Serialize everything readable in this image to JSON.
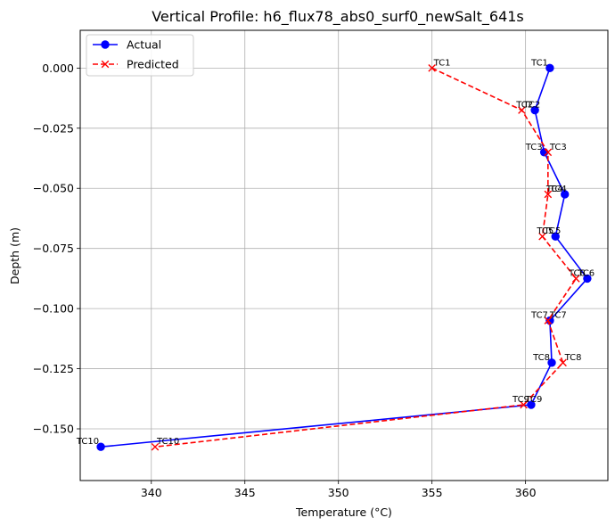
{
  "chart_data": {
    "type": "line",
    "title": "Vertical Profile: h6_flux78_abs0_surf0_newSalt_641s",
    "xlabel": "Temperature (°C)",
    "ylabel": "Depth (m)",
    "xlim": [
      336.2,
      364.4
    ],
    "ylim": [
      -0.1715,
      0.0157
    ],
    "xticks": [
      340,
      345,
      350,
      355,
      360
    ],
    "xtick_labels": [
      "340",
      "345",
      "350",
      "355",
      "360"
    ],
    "yticks": [
      0.0,
      -0.025,
      -0.05,
      -0.075,
      -0.1,
      -0.125,
      -0.15
    ],
    "ytick_labels": [
      "0.000",
      "−0.025",
      "−0.050",
      "−0.075",
      "−0.100",
      "−0.125",
      "−0.150"
    ],
    "grid": true,
    "legend_position": "top-left",
    "series": [
      {
        "name": "Actual",
        "color": "#0000ff",
        "linestyle": "solid",
        "marker": "circle",
        "label_side": "left",
        "points": [
          {
            "x": 361.3,
            "y": 0.0,
            "label": "TC1"
          },
          {
            "x": 360.5,
            "y": -0.0175,
            "label": "TC2"
          },
          {
            "x": 361.0,
            "y": -0.035,
            "label": "TC3"
          },
          {
            "x": 362.1,
            "y": -0.0525,
            "label": "TC4"
          },
          {
            "x": 361.6,
            "y": -0.07,
            "label": "TC5"
          },
          {
            "x": 363.3,
            "y": -0.0875,
            "label": "TC6"
          },
          {
            "x": 361.3,
            "y": -0.105,
            "label": "TC7"
          },
          {
            "x": 361.4,
            "y": -0.1225,
            "label": "TC8"
          },
          {
            "x": 360.3,
            "y": -0.14,
            "label": "TC9"
          },
          {
            "x": 337.3,
            "y": -0.1575,
            "label": "TC10"
          }
        ]
      },
      {
        "name": "Predicted",
        "color": "#ff0000",
        "linestyle": "dashed",
        "marker": "x",
        "label_side": "right",
        "points": [
          {
            "x": 355.0,
            "y": 0.0,
            "label": "TC1"
          },
          {
            "x": 359.8,
            "y": -0.0175,
            "label": "TC2"
          },
          {
            "x": 361.2,
            "y": -0.035,
            "label": "TC3"
          },
          {
            "x": 361.2,
            "y": -0.0525,
            "label": "TC4"
          },
          {
            "x": 360.9,
            "y": -0.07,
            "label": "TC5"
          },
          {
            "x": 362.7,
            "y": -0.0875,
            "label": "TC6"
          },
          {
            "x": 361.2,
            "y": -0.105,
            "label": "TC7"
          },
          {
            "x": 362.0,
            "y": -0.1225,
            "label": "TC8"
          },
          {
            "x": 359.9,
            "y": -0.14,
            "label": "TC9"
          },
          {
            "x": 340.2,
            "y": -0.1575,
            "label": "TC10"
          }
        ]
      }
    ]
  }
}
